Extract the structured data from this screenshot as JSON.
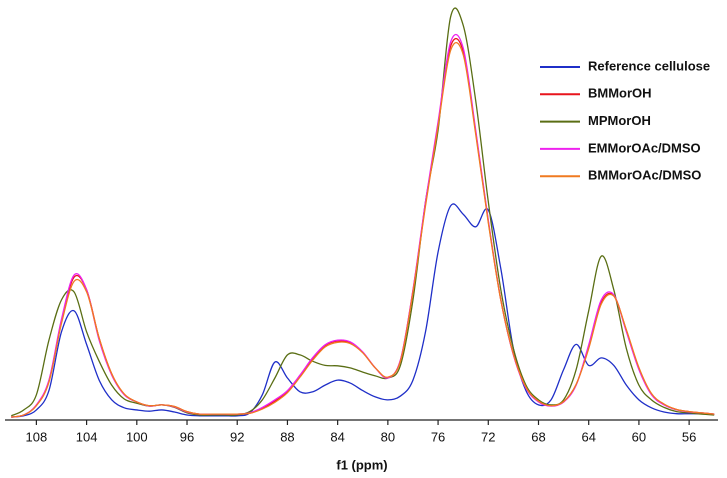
{
  "chart_data": {
    "type": "line",
    "x_label": "f1 (ppm)",
    "x": [
      110,
      109,
      108,
      107,
      106,
      105,
      104,
      103,
      102,
      101,
      100,
      99,
      98,
      97,
      96,
      95,
      94,
      93,
      92,
      91,
      90,
      89,
      88,
      87,
      86,
      85,
      84,
      83,
      82,
      81,
      80,
      79,
      78,
      77,
      76,
      75,
      74,
      73,
      72,
      71,
      70,
      69,
      68,
      67,
      66,
      65,
      64,
      63,
      62,
      61,
      60,
      59,
      58,
      57,
      56,
      55,
      54
    ],
    "xlim": [
      110.5,
      53.7
    ],
    "xticks": [
      108,
      104,
      100,
      96,
      92,
      88,
      84,
      80,
      76,
      72,
      68,
      64,
      60,
      56
    ],
    "ylim": [
      0,
      100
    ],
    "legend": "upper right",
    "series": [
      {
        "name": "Reference cellulose",
        "color": "#1f2fc8",
        "values": [
          0.7,
          1,
          2.4,
          7,
          21,
          26,
          18,
          9.5,
          4.8,
          2.9,
          2.4,
          2.1,
          2.4,
          1.9,
          1.2,
          1,
          1,
          1,
          1,
          1.7,
          6,
          13.8,
          10,
          6.7,
          6.7,
          8.3,
          9.5,
          8.8,
          7,
          5.5,
          4.8,
          5.7,
          9.5,
          21,
          40,
          51,
          49,
          46,
          50,
          36,
          17,
          7,
          3.6,
          4.8,
          12,
          18,
          13,
          14.8,
          13,
          8.3,
          4.8,
          2.9,
          1.9,
          1.5,
          1.5,
          1.5,
          1.4
        ]
      },
      {
        "name": "BMMorOH",
        "color": "#e8141c",
        "values": [
          0.7,
          1.2,
          3.5,
          9.3,
          23.5,
          34,
          31,
          19.5,
          11,
          6.1,
          4.3,
          3.4,
          3.6,
          3.2,
          2,
          1.4,
          1.4,
          1.4,
          1.4,
          1.6,
          2.8,
          4.5,
          6.8,
          10.5,
          14.5,
          17.7,
          18.8,
          18.4,
          16.1,
          12.4,
          10.1,
          14.2,
          30.8,
          51.5,
          70.5,
          89,
          87.8,
          68.5,
          47.3,
          28.6,
          15.6,
          7.7,
          4.4,
          3.4,
          4.3,
          8.4,
          17.4,
          28,
          29.6,
          21.3,
          12.2,
          6.2,
          3.7,
          2.5,
          2,
          1.7,
          1.4
        ]
      },
      {
        "name": "MPMorOH",
        "color": "#5a6e14",
        "values": [
          1,
          2.4,
          6,
          19,
          28.6,
          30.5,
          21,
          14,
          8.3,
          5,
          4,
          3.3,
          3.6,
          3,
          1.7,
          1.2,
          1.2,
          1.2,
          1.2,
          2,
          4.8,
          10,
          15.5,
          15.5,
          14,
          13,
          12.9,
          12.4,
          11.4,
          10.5,
          10,
          13,
          28.6,
          52,
          69,
          96,
          94,
          76,
          52,
          31,
          17,
          8.3,
          4.8,
          3.6,
          4.8,
          12,
          26,
          39,
          31,
          17,
          8.3,
          4.8,
          3,
          2,
          1.7,
          1.4,
          1.2
        ]
      },
      {
        "name": "EMMorOAc/DMSO",
        "color": "#ee22ee",
        "values": [
          0.7,
          1.2,
          3.6,
          9.5,
          24,
          34.5,
          31,
          19,
          10.7,
          6,
          4.3,
          3.3,
          3.6,
          3.1,
          1.9,
          1.4,
          1.4,
          1.4,
          1.4,
          1.7,
          3,
          4.8,
          7,
          10.7,
          14.8,
          17.9,
          19,
          18.6,
          16.2,
          12.4,
          10,
          14.3,
          31,
          52,
          71,
          90,
          88.6,
          69,
          47.6,
          28.6,
          15.5,
          7.6,
          4.3,
          3.3,
          4.3,
          8.3,
          17.9,
          28.6,
          29.8,
          21,
          12,
          6,
          3.6,
          2.4,
          1.9,
          1.7,
          1.4
        ]
      },
      {
        "name": "BMMorOAc/DMSO",
        "color": "#f07a20",
        "values": [
          0.7,
          1.2,
          3.4,
          9,
          23,
          33,
          30.5,
          19.5,
          11,
          6.2,
          4.3,
          3.4,
          3.6,
          3.2,
          2,
          1.4,
          1.4,
          1.4,
          1.4,
          1.6,
          2.6,
          4.2,
          6.5,
          10.2,
          14.2,
          17.4,
          18.5,
          18.2,
          16,
          12.4,
          10.2,
          14,
          30.5,
          51,
          70,
          88,
          87,
          68,
          47,
          28.5,
          15.7,
          7.8,
          4.5,
          3.4,
          4.4,
          8.5,
          17,
          27.6,
          29.5,
          21.5,
          12.5,
          6.3,
          3.8,
          2.5,
          2,
          1.7,
          1.4
        ]
      }
    ]
  }
}
